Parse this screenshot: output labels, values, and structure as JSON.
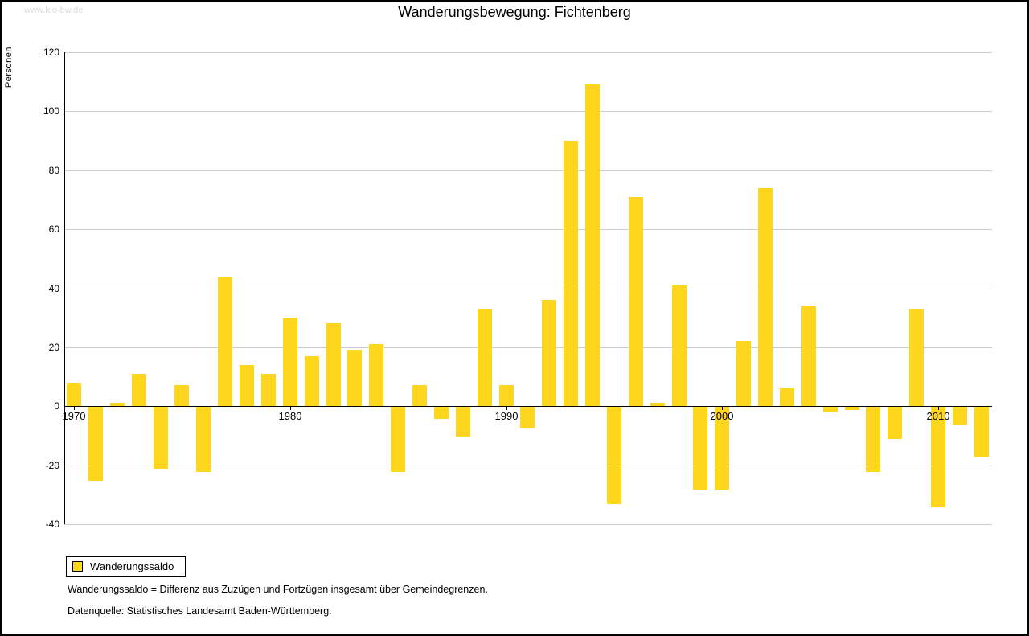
{
  "watermark": "www.leo-bw.de",
  "title": "Wanderungsbewegung: Fichtenberg",
  "y_axis_label": "Personen",
  "legend": {
    "label": "Wanderungssaldo"
  },
  "footnotes": [
    "Wanderungssaldo = Differenz aus Zuzügen und Fortzügen insgesamt über Gemeindegrenzen.",
    "Datenquelle: Statistisches Landesamt Baden-Württemberg."
  ],
  "colors": {
    "bar": "#FFD61E",
    "grid": "#cccccc",
    "axis": "#000000",
    "watermark": "#dddddd"
  },
  "chart_data": {
    "type": "bar",
    "title": "Wanderungsbewegung: Fichtenberg",
    "xlabel": "",
    "ylabel": "Personen",
    "ylim": [
      -40,
      120
    ],
    "y_ticks": [
      -40,
      -20,
      0,
      20,
      40,
      60,
      80,
      100,
      120
    ],
    "x_ticks": [
      1970,
      1980,
      1990,
      2000,
      2010
    ],
    "grid": true,
    "legend_position": "bottom-left",
    "categories": [
      1970,
      1971,
      1972,
      1973,
      1974,
      1975,
      1976,
      1977,
      1978,
      1979,
      1980,
      1981,
      1982,
      1983,
      1984,
      1985,
      1986,
      1987,
      1988,
      1989,
      1990,
      1991,
      1992,
      1993,
      1994,
      1995,
      1996,
      1997,
      1998,
      1999,
      2000,
      2001,
      2002,
      2003,
      2004,
      2005,
      2006,
      2007,
      2008,
      2009,
      2010,
      2011,
      2012
    ],
    "series": [
      {
        "name": "Wanderungssaldo",
        "values": [
          8,
          -25,
          1,
          11,
          -21,
          7,
          -22,
          44,
          14,
          11,
          30,
          17,
          28,
          19,
          21,
          -22,
          7,
          -4,
          -10,
          33,
          7,
          -7,
          36,
          90,
          109,
          -33,
          71,
          1,
          41,
          -28,
          -28,
          22,
          74,
          6,
          34,
          -2,
          -1,
          -22,
          -11,
          33,
          -34,
          -6,
          -17
        ]
      }
    ]
  }
}
